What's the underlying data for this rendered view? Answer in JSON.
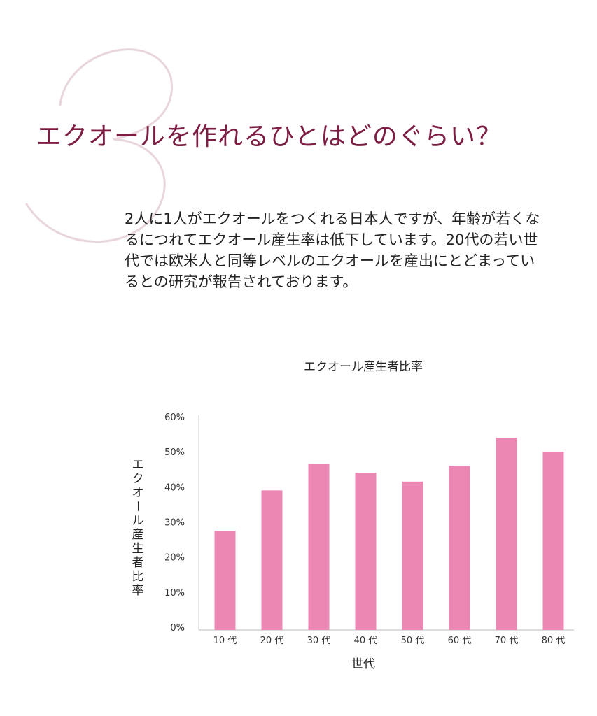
{
  "heading": {
    "number": "3",
    "title": "エクオールを作れるひとはどのぐらい？"
  },
  "intro": {
    "lines": [
      "2人に1人がエクオールをつくれる日本人ですが、年齢が若くな",
      "るにつれてエクオール産生率は低下しています。20代の若い世",
      "代では欧米人と同等レベルのエクオールを産出にとどまってい",
      "るとの研究が報告されております。"
    ]
  },
  "colors": {
    "title": "#7d1d44",
    "bar": "#ec86b3",
    "number_outline": "#e9d5dc"
  },
  "chart_data": {
    "type": "bar",
    "title": "エクオール産生者比率",
    "xlabel": "世代",
    "ylabel": "エクオール産生者比率",
    "categories": [
      "10 代",
      "20 代",
      "30 代",
      "40 代",
      "50 代",
      "60 代",
      "70 代",
      "80 代"
    ],
    "values": [
      27.5,
      39,
      46.5,
      44,
      41.5,
      46,
      54,
      50
    ],
    "ylim": [
      0,
      60
    ],
    "yticks": [
      "0%",
      "10%",
      "20%",
      "30%",
      "40%",
      "50%",
      "60%"
    ],
    "grid": false
  }
}
